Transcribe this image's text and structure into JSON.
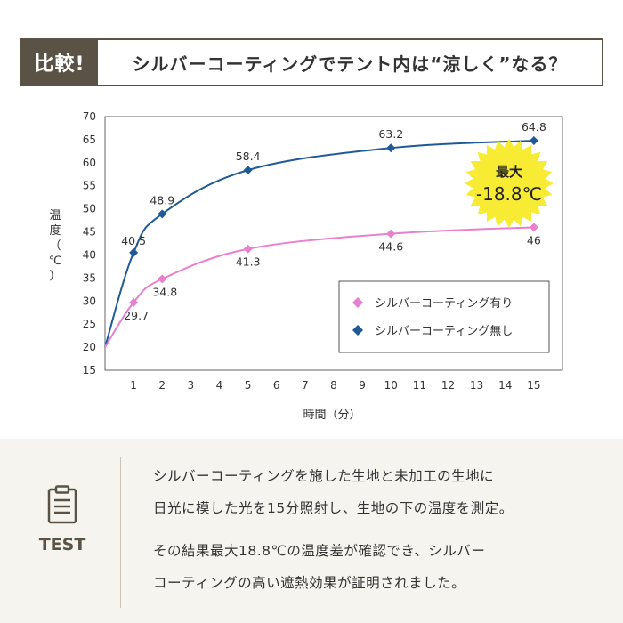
{
  "header": {
    "badge": "比較!",
    "title": "シルバーコーティングでテント内は“涼しく”なる？"
  },
  "chart_data": {
    "type": "line",
    "title": "",
    "xlabel": "時間（分）",
    "ylabel": [
      "温",
      "度",
      "（",
      "℃",
      "）"
    ],
    "x_ticks": [
      1,
      2,
      3,
      4,
      5,
      6,
      7,
      8,
      9,
      10,
      11,
      12,
      13,
      14,
      15
    ],
    "y_ticks": [
      15,
      20,
      25,
      30,
      35,
      40,
      45,
      50,
      55,
      60,
      65,
      70
    ],
    "ylim": [
      15,
      70
    ],
    "xlim": [
      0,
      16
    ],
    "series": [
      {
        "name": "シルバーコーティング無し",
        "color": "#1f5a96",
        "marker": "diamond",
        "start": [
          0,
          20
        ],
        "x": [
          1,
          2,
          5,
          10,
          15
        ],
        "y": [
          40.5,
          48.9,
          58.4,
          63.2,
          64.8
        ],
        "labels": [
          "40.5",
          "48.9",
          "58.4",
          "63.2",
          "64.8"
        ],
        "label_pos": "above"
      },
      {
        "name": "シルバーコーティング有り",
        "color": "#e97fcf",
        "marker": "diamond",
        "start": [
          0,
          20
        ],
        "x": [
          1,
          2,
          5,
          10,
          15
        ],
        "y": [
          29.7,
          34.8,
          41.3,
          44.6,
          46
        ],
        "labels": [
          "29.7",
          "34.8",
          "41.3",
          "44.6",
          "46"
        ],
        "label_pos": "below"
      }
    ],
    "legend_order": [
      "シルバーコーティング有り",
      "シルバーコーティング無し"
    ],
    "legend_position": "bottom-right",
    "annotation": {
      "line1": "最大",
      "line2": "-18.8℃",
      "color": "#f7ec33"
    }
  },
  "footer": {
    "icon": "clipboard-icon",
    "test_label": "TEST",
    "para1": [
      "シルバーコーティングを施した生地と未加工の生地に",
      "日光に模した光を15分照射し、生地の下の温度を測定。"
    ],
    "para2": [
      "その結果最大18.8℃の温度差が確認でき、シルバー",
      "コーティングの高い遮熱効果が証明されました。"
    ]
  }
}
